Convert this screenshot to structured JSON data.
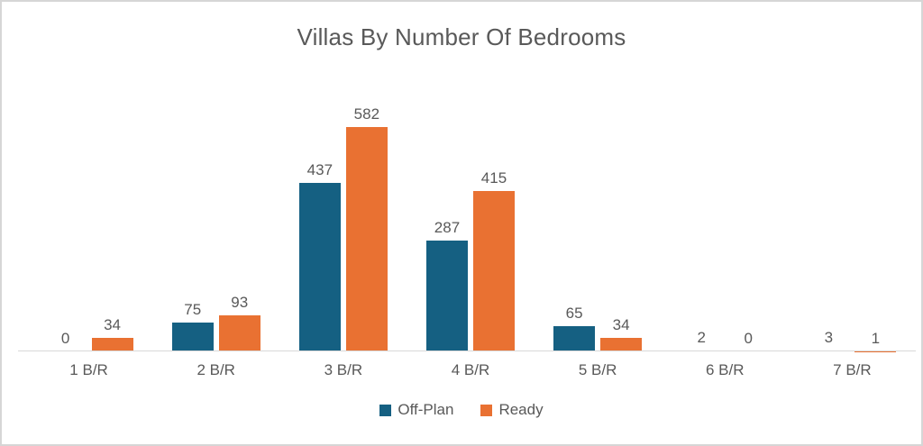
{
  "chart_data": {
    "type": "bar",
    "title": "Villas By Number Of Bedrooms",
    "categories": [
      "1 B/R",
      "2 B/R",
      "3 B/R",
      "4 B/R",
      "5 B/R",
      "6 B/R",
      "7 B/R"
    ],
    "series": [
      {
        "name": "Off-Plan",
        "color": "#156082",
        "values": [
          0,
          75,
          437,
          287,
          65,
          2,
          3
        ]
      },
      {
        "name": "Ready",
        "color": "#E97132",
        "values": [
          34,
          93,
          582,
          415,
          34,
          0,
          1
        ]
      }
    ],
    "xlabel": "",
    "ylabel": "",
    "value_axis_visible": false,
    "grid": false,
    "data_labels": true,
    "legend_position": "bottom",
    "ylim": [
      0,
      620
    ]
  },
  "style": {
    "text_color": "#595959",
    "axis_line_color": "#d9d9d9",
    "frame_border_color": "#d6d6d6",
    "background": "#ffffff"
  }
}
